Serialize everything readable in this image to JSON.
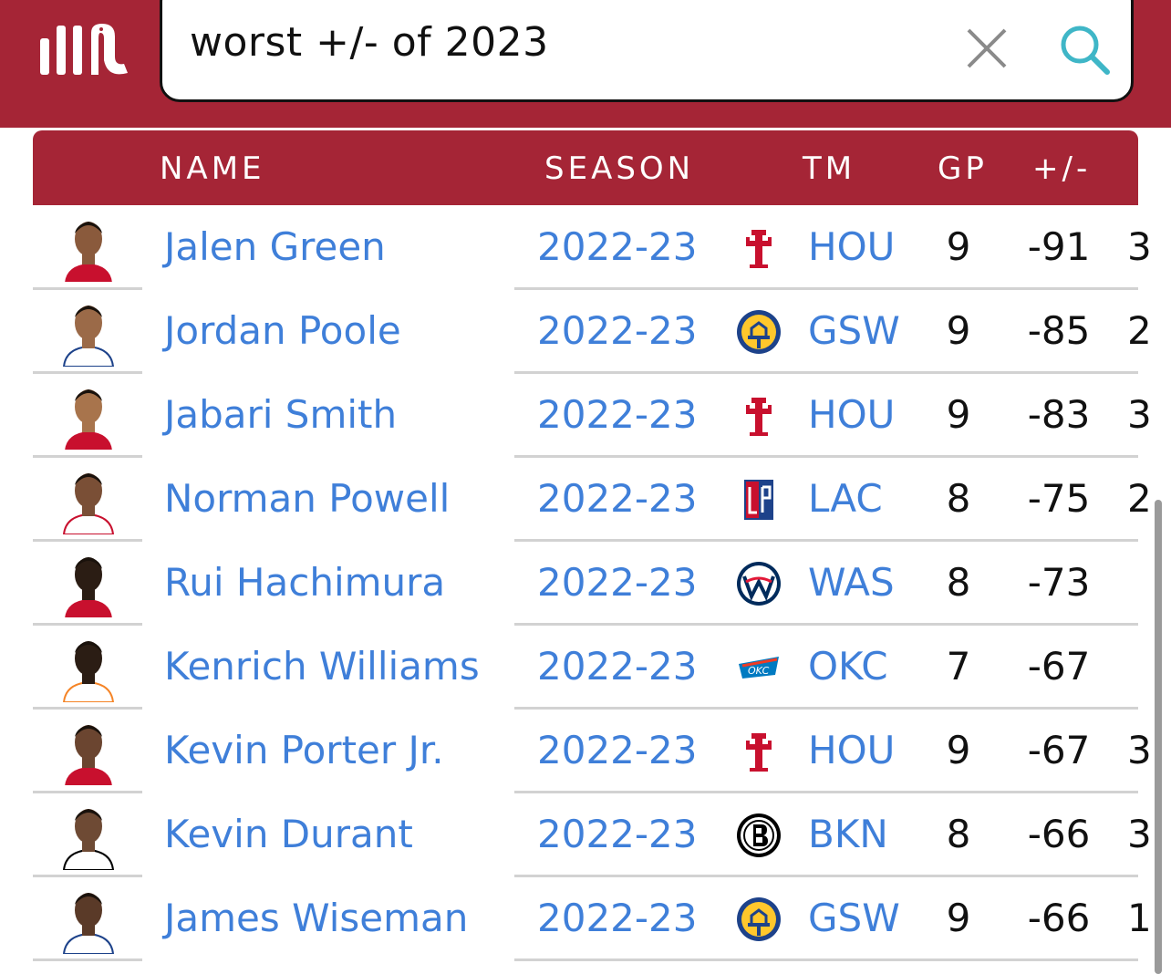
{
  "search": {
    "query": "worst +/- of 2023"
  },
  "table": {
    "columns": [
      "NAME",
      "SEASON",
      "TM",
      "GP",
      "+/-"
    ],
    "rows": [
      {
        "name": "Jalen Green",
        "season": "2022-23",
        "team": "HOU",
        "gp": "9",
        "pm": "-91",
        "extra": "3",
        "logo": "rockets-logo"
      },
      {
        "name": "Jordan Poole",
        "season": "2022-23",
        "team": "GSW",
        "gp": "9",
        "pm": "-85",
        "extra": "2",
        "logo": "warriors-logo"
      },
      {
        "name": "Jabari Smith",
        "season": "2022-23",
        "team": "HOU",
        "gp": "9",
        "pm": "-83",
        "extra": "3",
        "logo": "rockets-logo"
      },
      {
        "name": "Norman Powell",
        "season": "2022-23",
        "team": "LAC",
        "gp": "8",
        "pm": "-75",
        "extra": "2",
        "logo": "clippers-logo"
      },
      {
        "name": "Rui Hachimura",
        "season": "2022-23",
        "team": "WAS",
        "gp": "8",
        "pm": "-73",
        "extra": "",
        "logo": "wizards-logo"
      },
      {
        "name": "Kenrich Williams",
        "season": "2022-23",
        "team": "OKC",
        "gp": "7",
        "pm": "-67",
        "extra": "",
        "logo": "thunder-logo"
      },
      {
        "name": "Kevin Porter Jr.",
        "season": "2022-23",
        "team": "HOU",
        "gp": "9",
        "pm": "-67",
        "extra": "3",
        "logo": "rockets-logo"
      },
      {
        "name": "Kevin Durant",
        "season": "2022-23",
        "team": "BKN",
        "gp": "8",
        "pm": "-66",
        "extra": "3",
        "logo": "nets-logo"
      },
      {
        "name": "James Wiseman",
        "season": "2022-23",
        "team": "GSW",
        "gp": "9",
        "pm": "-66",
        "extra": "1",
        "logo": "warriors-logo"
      }
    ]
  },
  "colors": {
    "brand": "#a52536",
    "link": "#3f7fd9",
    "search_icon": "#3fb6c7"
  }
}
